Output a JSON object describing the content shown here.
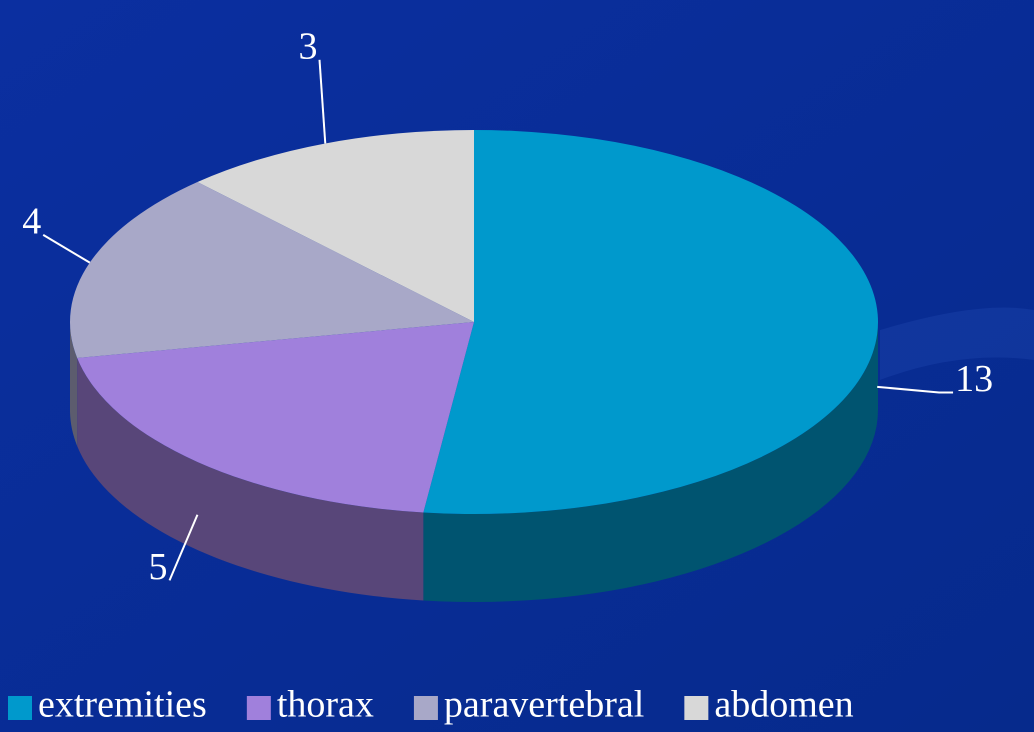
{
  "chart_data": {
    "type": "pie3d",
    "categories": [
      "extremities",
      "thorax",
      "paravertebral",
      "abdomen"
    ],
    "values": [
      13,
      5,
      4,
      3
    ],
    "colors": [
      "#0099cc",
      "#a080dc",
      "#a8a8c8",
      "#d8d8d8"
    ],
    "legend": "bottom"
  }
}
